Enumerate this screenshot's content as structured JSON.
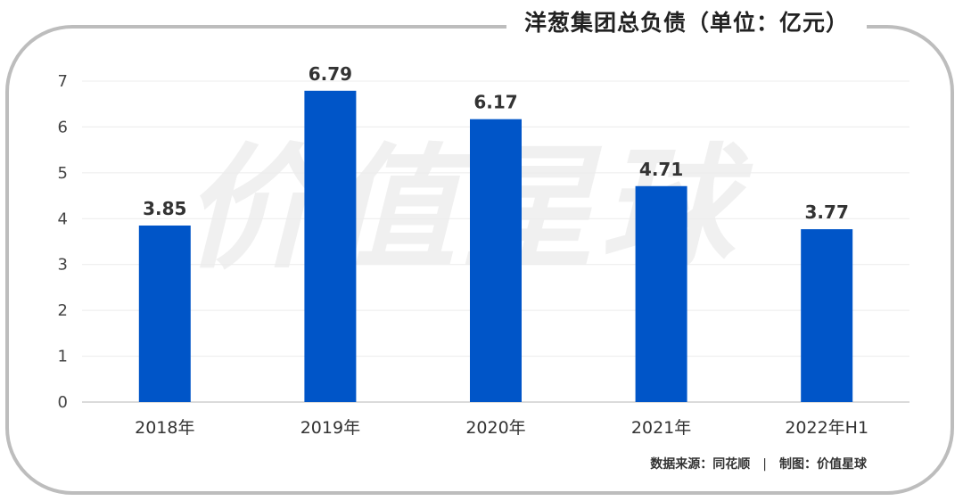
{
  "chart_data": {
    "type": "bar",
    "title": "洋葱集团总负债（单位：亿元）",
    "categories": [
      "2018年",
      "2019年",
      "2020年",
      "2021年",
      "2022年H1"
    ],
    "values": [
      3.85,
      6.79,
      6.17,
      4.71,
      3.77
    ],
    "value_labels": [
      "3.85",
      "6.79",
      "6.17",
      "4.71",
      "3.77"
    ],
    "yticks": [
      "0",
      "1",
      "2",
      "3",
      "4",
      "5",
      "6",
      "7"
    ],
    "ylim": [
      0,
      7
    ],
    "grid": true,
    "bar_color": "#0055c8"
  },
  "watermark": "价值星球",
  "source": {
    "data": "数据来源：同花顺",
    "separator": "|",
    "made_by": "制图：价值星球"
  }
}
